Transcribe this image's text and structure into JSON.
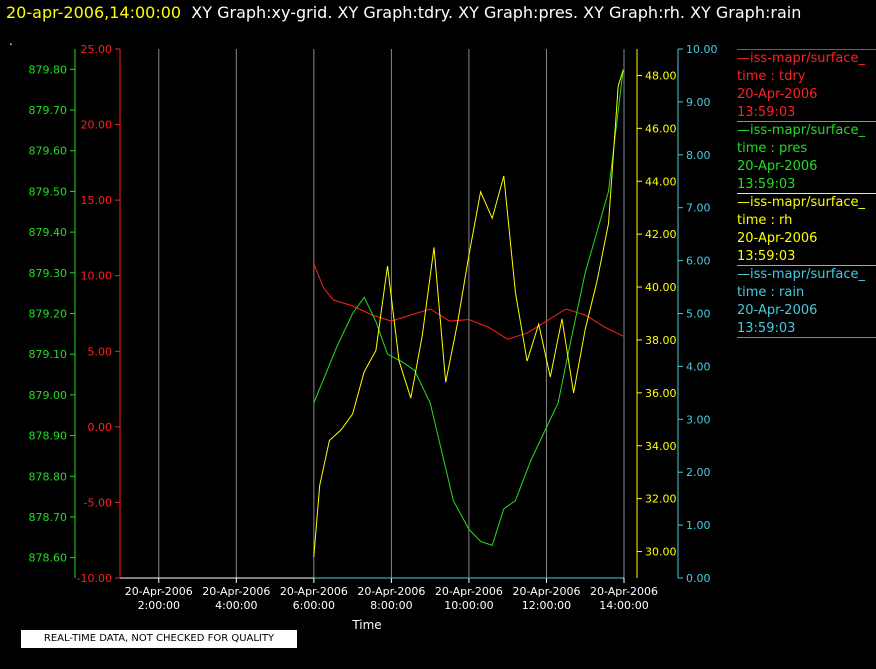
{
  "header": {
    "timestamp": "20-apr-2006,14:00:00",
    "graphs": "XY Graph:xy-grid.  XY Graph:tdry.  XY Graph:pres.  XY Graph:rh.  XY Graph:rain",
    "dot": "."
  },
  "notice": "REAL-TIME DATA, NOT CHECKED FOR QUALITY",
  "colors": {
    "tdry": "#ff2020",
    "pres": "#22dd22",
    "rh": "#ffff00",
    "rain": "#44ccdd",
    "grid": "#888888"
  },
  "legend": [
    {
      "name": "—iss-mapr/surface_",
      "label": "time : tdry",
      "date": "20-Apr-2006",
      "time": "13:59:03"
    },
    {
      "name": "—iss-mapr/surface_",
      "label": "time : pres",
      "date": "20-Apr-2006",
      "time": "13:59:03"
    },
    {
      "name": "—iss-mapr/surface_",
      "label": "time : rh",
      "date": "20-Apr-2006",
      "time": "13:59:03"
    },
    {
      "name": "—iss-mapr/surface_",
      "label": "time : rain",
      "date": "20-Apr-2006",
      "time": "13:59:03"
    }
  ],
  "chart_data": {
    "type": "line",
    "xlabel": "Time",
    "x_ticks": [
      {
        "date": "20-Apr-2006",
        "time": "2:00:00"
      },
      {
        "date": "20-Apr-2006",
        "time": "4:00:00"
      },
      {
        "date": "20-Apr-2006",
        "time": "6:00:00"
      },
      {
        "date": "20-Apr-2006",
        "time": "8:00:00"
      },
      {
        "date": "20-Apr-2006",
        "time": "10:00:00"
      },
      {
        "date": "20-Apr-2006",
        "time": "12:00:00"
      },
      {
        "date": "20-Apr-2006",
        "time": "14:00:00"
      }
    ],
    "x_hours": [
      2,
      4,
      6,
      8,
      10,
      12,
      14
    ],
    "xlim": [
      1,
      14
    ],
    "grid": true,
    "axes": {
      "tdry": {
        "ylim": [
          -10,
          25
        ],
        "ticks": [
          "-10.00",
          "-5.00",
          "0.00",
          "5.00",
          "10.00",
          "15.00",
          "20.00",
          "25.00"
        ]
      },
      "pres": {
        "ylim": [
          878.55,
          879.85
        ],
        "ticks": [
          "878.60",
          "878.70",
          "878.80",
          "878.90",
          "879.00",
          "879.10",
          "879.20",
          "879.30",
          "879.40",
          "879.50",
          "879.60",
          "879.70",
          "879.80"
        ]
      },
      "rh": {
        "ylim": [
          29,
          49
        ],
        "ticks": [
          "30.00",
          "32.00",
          "34.00",
          "36.00",
          "38.00",
          "40.00",
          "42.00",
          "44.00",
          "46.00",
          "48.00"
        ]
      },
      "rain": {
        "ylim": [
          0,
          10
        ],
        "ticks": [
          "0.00",
          "1.00",
          "2.00",
          "3.00",
          "4.00",
          "5.00",
          "6.00",
          "7.00",
          "8.00",
          "9.00",
          "10.00"
        ]
      }
    },
    "series": [
      {
        "key": "tdry",
        "x": [
          6,
          6.25,
          6.5,
          7,
          7.5,
          8,
          8.5,
          9,
          9.5,
          10,
          10.5,
          11,
          11.5,
          12,
          12.5,
          13,
          13.5,
          13.98
        ],
        "y": [
          10.8,
          9.2,
          8.4,
          8.0,
          7.4,
          7.0,
          7.4,
          7.8,
          7.0,
          7.1,
          6.6,
          5.8,
          6.2,
          7.0,
          7.8,
          7.4,
          6.6,
          6.0
        ]
      },
      {
        "key": "pres",
        "x": [
          6,
          6.3,
          6.6,
          7,
          7.3,
          7.6,
          7.9,
          8.3,
          8.6,
          9,
          9.3,
          9.6,
          10,
          10.3,
          10.6,
          10.9,
          11.2,
          11.6,
          12,
          12.3,
          12.6,
          13,
          13.3,
          13.6,
          13.98
        ],
        "y": [
          878.98,
          879.05,
          879.12,
          879.2,
          879.24,
          879.18,
          879.1,
          879.08,
          879.06,
          878.98,
          878.86,
          878.74,
          878.67,
          878.64,
          878.63,
          878.72,
          878.74,
          878.84,
          878.92,
          878.98,
          879.12,
          879.3,
          879.4,
          879.5,
          879.8
        ]
      },
      {
        "key": "rh",
        "x": [
          6,
          6.15,
          6.4,
          6.7,
          7,
          7.3,
          7.6,
          7.9,
          8.2,
          8.5,
          8.8,
          9.1,
          9.4,
          9.7,
          10,
          10.3,
          10.6,
          10.9,
          11.2,
          11.5,
          11.8,
          12.1,
          12.4,
          12.7,
          13,
          13.3,
          13.6,
          13.85,
          13.98
        ],
        "y": [
          29.8,
          32.5,
          34.2,
          34.6,
          35.2,
          36.8,
          37.6,
          40.8,
          37.2,
          35.8,
          38.2,
          41.5,
          36.4,
          38.6,
          41.2,
          43.6,
          42.6,
          44.2,
          39.8,
          37.2,
          38.6,
          36.6,
          38.8,
          36.0,
          38.4,
          40.2,
          42.4,
          47.6,
          48.2
        ]
      },
      {
        "key": "rain",
        "x": [
          6,
          13.98
        ],
        "y": [
          0,
          0
        ]
      }
    ]
  }
}
